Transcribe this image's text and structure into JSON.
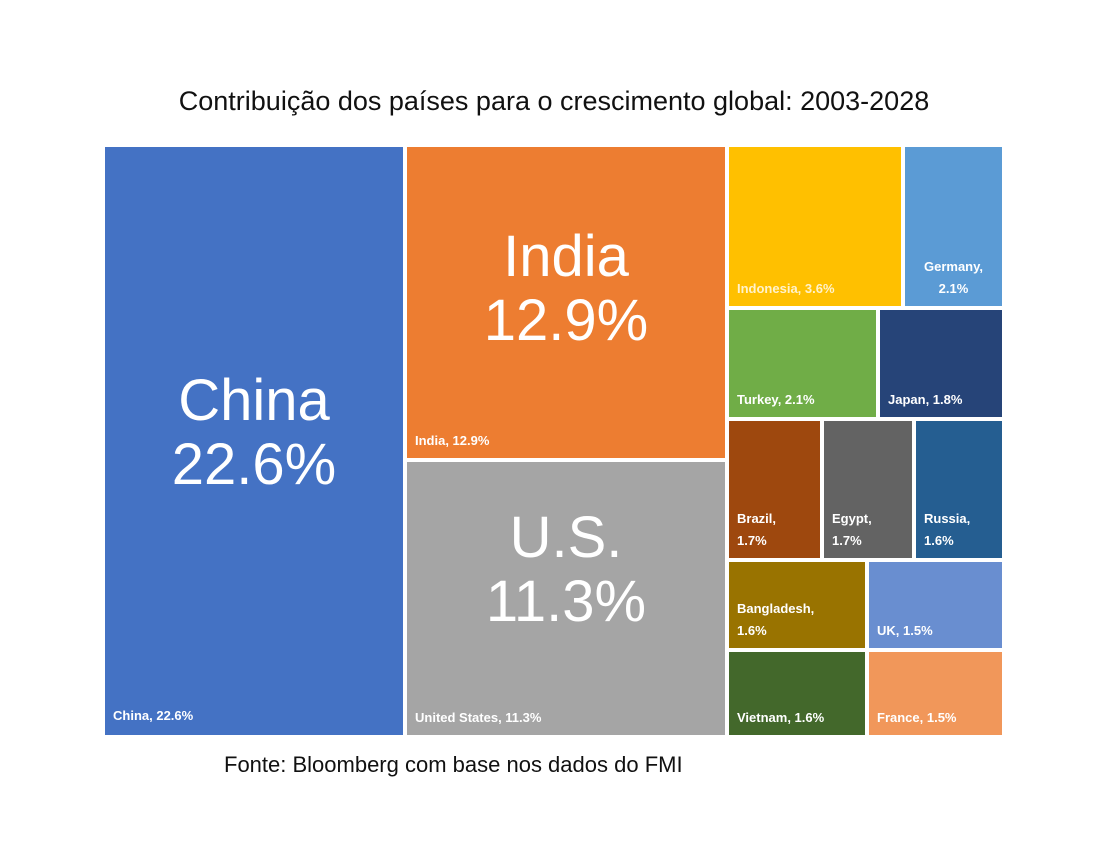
{
  "chart_data": {
    "type": "treemap",
    "title": "Contribuição dos países para o crescimento global: 2003-2028",
    "source": "Fonte: Bloomberg com base nos dados do FMI",
    "unit": "%",
    "items": [
      {
        "key": "china",
        "label": "China, 22.6%",
        "big_name": "China",
        "big_value": "22.6%",
        "country": "China",
        "value": 22.6,
        "color": "#4472C4",
        "label_color": "#FFFFFF"
      },
      {
        "key": "india",
        "label": "India, 12.9%",
        "big_name": "India",
        "big_value": "12.9%",
        "country": "India",
        "value": 12.9,
        "color": "#ED7D31",
        "label_color": "#FFFFFF"
      },
      {
        "key": "us",
        "label": "United States, 11.3%",
        "big_name": "U.S.",
        "big_value": "11.3%",
        "country": "United States",
        "value": 11.3,
        "color": "#A5A5A5",
        "label_color": "#FFFFFF"
      },
      {
        "key": "indonesia",
        "label": "Indonesia, 3.6%",
        "country": "Indonesia",
        "value": 3.6,
        "color": "#FFC000",
        "label_color": "#FFF2CC"
      },
      {
        "key": "germany",
        "label": "Germany,\n2.1%",
        "country": "Germany",
        "value": 2.1,
        "color": "#5B9BD5",
        "label_color": "#FFFFFF"
      },
      {
        "key": "turkey",
        "label": "Turkey, 2.1%",
        "country": "Turkey",
        "value": 2.1,
        "color": "#70AD47",
        "label_color": "#FFFFFF"
      },
      {
        "key": "japan",
        "label": "Japan, 1.8%",
        "country": "Japan",
        "value": 1.8,
        "color": "#264478",
        "label_color": "#FFFFFF"
      },
      {
        "key": "brazil",
        "label": "Brazil,\n1.7%",
        "country": "Brazil",
        "value": 1.7,
        "color": "#9E480E",
        "label_color": "#FFFFFF"
      },
      {
        "key": "egypt",
        "label": "Egypt,\n1.7%",
        "country": "Egypt",
        "value": 1.7,
        "color": "#636363",
        "label_color": "#FFFFFF"
      },
      {
        "key": "russia",
        "label": "Russia,\n1.6%",
        "country": "Russia",
        "value": 1.6,
        "color": "#255E91",
        "label_color": "#FFFFFF"
      },
      {
        "key": "bangladesh",
        "label": "Bangladesh,\n1.6%",
        "country": "Bangladesh",
        "value": 1.6,
        "color": "#997300",
        "label_color": "#FFFFFF"
      },
      {
        "key": "uk",
        "label": "UK, 1.5%",
        "country": "UK",
        "value": 1.5,
        "color": "#698ED0",
        "label_color": "#FFFFFF"
      },
      {
        "key": "vietnam",
        "label": "Vietnam, 1.6%",
        "country": "Vietnam",
        "value": 1.6,
        "color": "#43682B",
        "label_color": "#FFFFFF"
      },
      {
        "key": "france",
        "label": "France, 1.5%",
        "country": "France",
        "value": 1.5,
        "color": "#F1975A",
        "label_color": "#FFFFFF"
      }
    ]
  }
}
